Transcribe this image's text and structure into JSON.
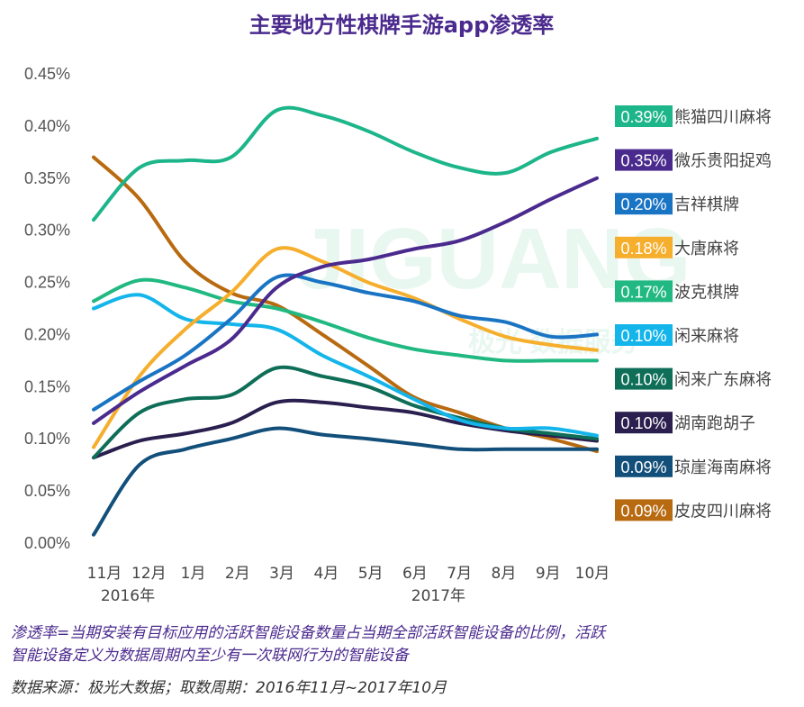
{
  "chart_data": {
    "type": "line",
    "title": "主要地方性棋牌手游app渗透率",
    "xlabel": "",
    "ylabel": "",
    "ylim": [
      0,
      0.45
    ],
    "y_ticks": [
      "0.00%",
      "0.05%",
      "0.10%",
      "0.15%",
      "0.20%",
      "0.25%",
      "0.30%",
      "0.35%",
      "0.40%",
      "0.45%"
    ],
    "categories": [
      "11月",
      "12月",
      "1月",
      "2月",
      "3月",
      "4月",
      "5月",
      "6月",
      "7月",
      "8月",
      "9月",
      "10月"
    ],
    "year_labels": [
      "2016年",
      "2017年"
    ],
    "legend_position": "right",
    "series": [
      {
        "name": "熊猫四川麻将",
        "value_label": "0.39%",
        "color": "#1DB58A",
        "values": [
          0.31,
          0.36,
          0.367,
          0.37,
          0.415,
          0.41,
          0.395,
          0.375,
          0.36,
          0.355,
          0.375,
          0.388
        ]
      },
      {
        "name": "微乐贵阳捉鸡",
        "value_label": "0.35%",
        "color": "#4B2A8E",
        "values": [
          0.115,
          0.145,
          0.17,
          0.195,
          0.245,
          0.265,
          0.272,
          0.282,
          0.29,
          0.308,
          0.33,
          0.35
        ]
      },
      {
        "name": "吉祥棋牌",
        "value_label": "0.20%",
        "color": "#1A74C4",
        "values": [
          0.128,
          0.155,
          0.18,
          0.215,
          0.255,
          0.25,
          0.24,
          0.232,
          0.218,
          0.212,
          0.198,
          0.2
        ]
      },
      {
        "name": "大唐麻将",
        "value_label": "0.18%",
        "color": "#F6AE2D",
        "values": [
          0.092,
          0.16,
          0.205,
          0.24,
          0.282,
          0.27,
          0.25,
          0.235,
          0.215,
          0.198,
          0.19,
          0.185
        ]
      },
      {
        "name": "波克棋牌",
        "value_label": "0.17%",
        "color": "#21B981",
        "values": [
          0.232,
          0.252,
          0.245,
          0.232,
          0.225,
          0.212,
          0.197,
          0.186,
          0.18,
          0.175,
          0.175,
          0.175
        ]
      },
      {
        "name": "闲来麻将",
        "value_label": "0.10%",
        "color": "#13B5EA",
        "values": [
          0.225,
          0.238,
          0.215,
          0.21,
          0.205,
          0.18,
          0.16,
          0.138,
          0.118,
          0.11,
          0.11,
          0.103
        ]
      },
      {
        "name": "闲来广东麻将",
        "value_label": "0.10%",
        "color": "#0E6E57",
        "values": [
          0.082,
          0.125,
          0.138,
          0.142,
          0.168,
          0.16,
          0.15,
          0.132,
          0.12,
          0.11,
          0.105,
          0.1
        ]
      },
      {
        "name": "湖南跑胡子",
        "value_label": "0.10%",
        "color": "#2A1F4E",
        "values": [
          0.082,
          0.098,
          0.105,
          0.115,
          0.135,
          0.135,
          0.13,
          0.125,
          0.115,
          0.108,
          0.103,
          0.098
        ]
      },
      {
        "name": "琼崖海南麻将",
        "value_label": "0.09%",
        "color": "#124F7A",
        "values": [
          0.008,
          0.075,
          0.09,
          0.1,
          0.11,
          0.104,
          0.1,
          0.095,
          0.09,
          0.09,
          0.09,
          0.09
        ]
      },
      {
        "name": "皮皮四川麻将",
        "value_label": "0.09%",
        "color": "#B86A10",
        "values": [
          0.37,
          0.33,
          0.27,
          0.24,
          0.228,
          0.2,
          0.17,
          0.14,
          0.125,
          0.11,
          0.1,
          0.088
        ]
      }
    ]
  },
  "watermark": {
    "text": "JIGUANG",
    "subtext": "极光 数据服务"
  },
  "footnote": {
    "line1": "渗透率=当期安装有目标应用的活跃智能设备数量占当期全部活跃智能设备的比例，活跃",
    "line2": "智能设备定义为数据周期内至少有一次联网行为的智能设备",
    "source": "数据来源：极光大数据；取数周期：2016年11月~2017年10月"
  },
  "colors": {
    "title": "#4B2A8E",
    "note": "#4B2A8E",
    "source": "#333333",
    "watermark": "#2DB87A"
  }
}
